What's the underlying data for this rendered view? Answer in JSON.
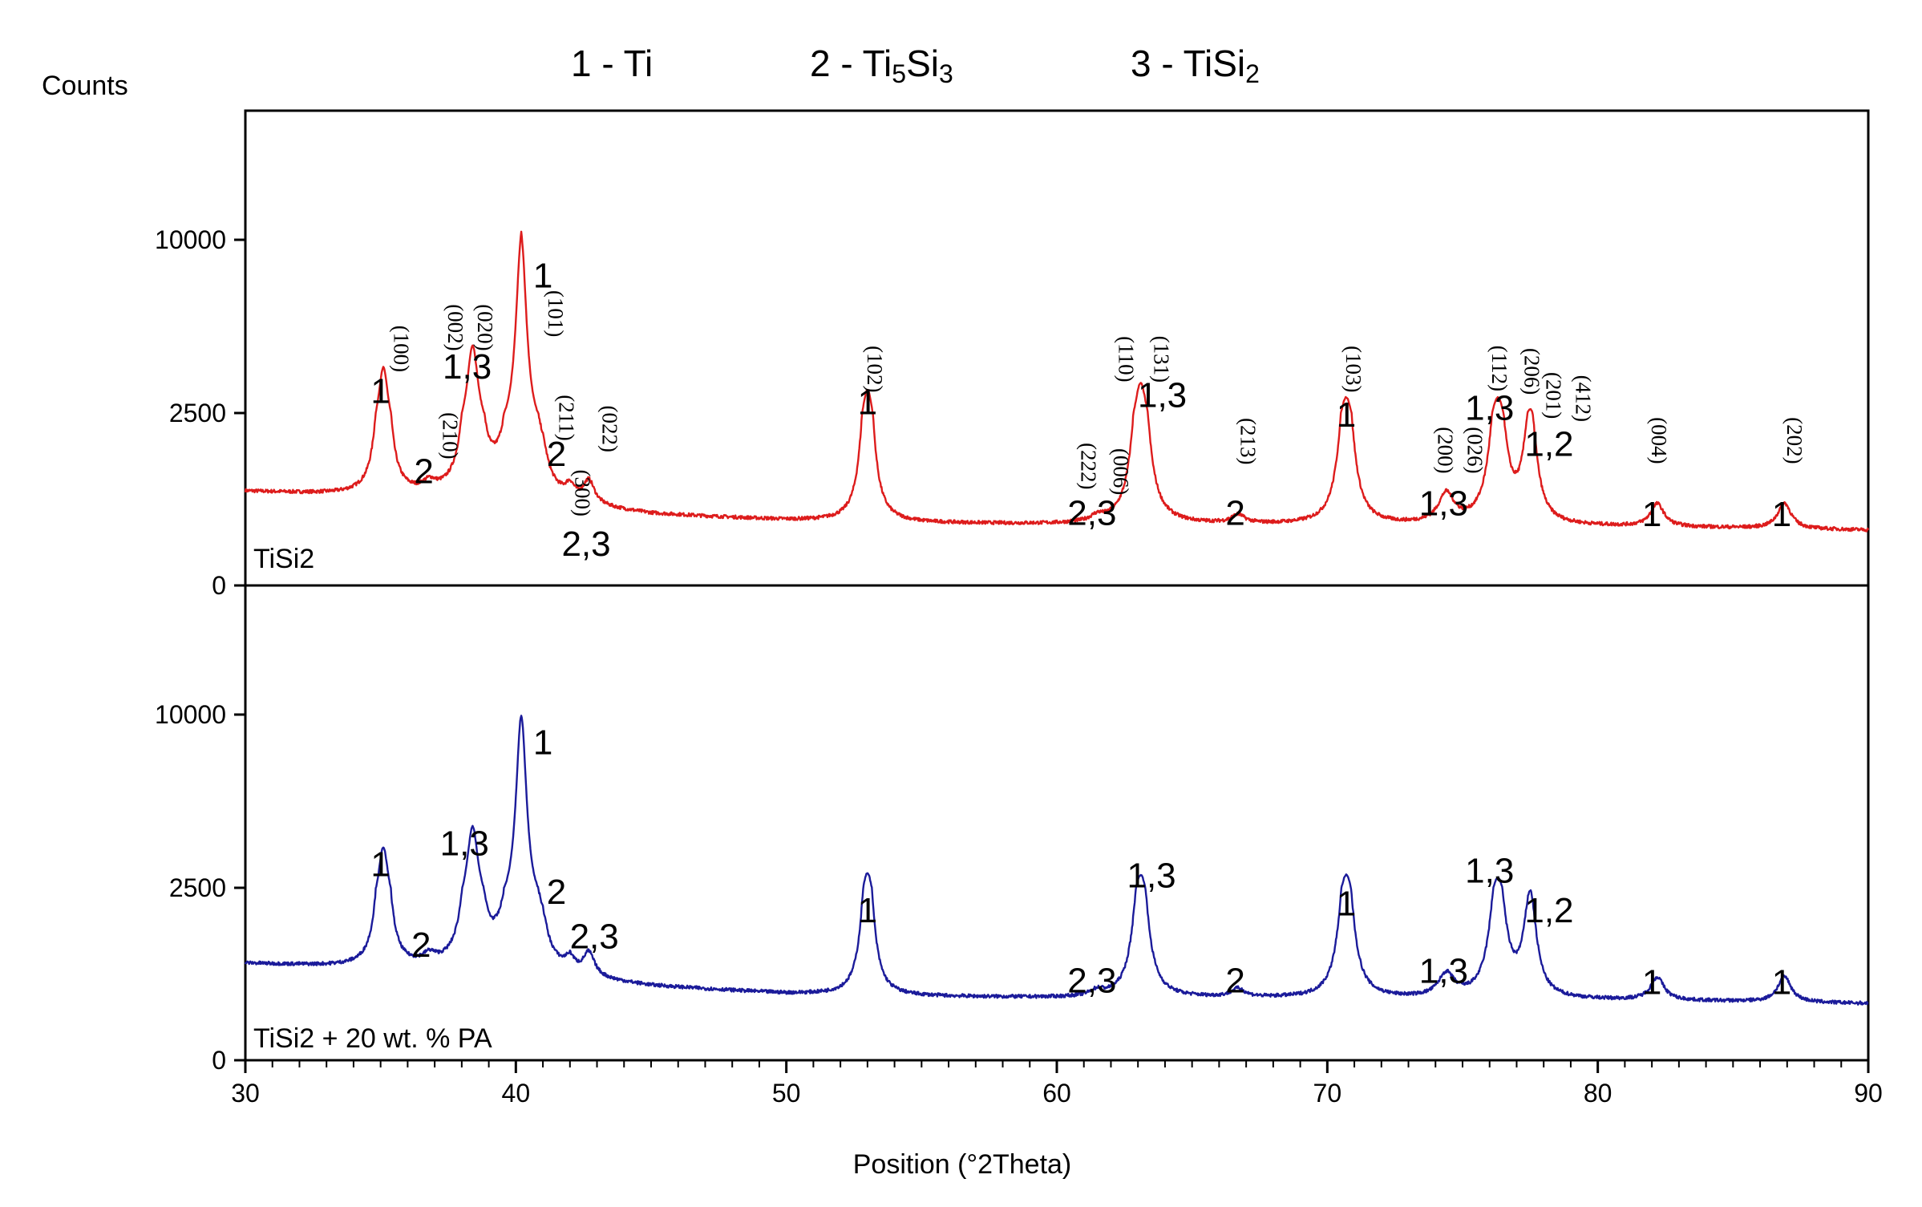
{
  "legend": {
    "phase1": {
      "num": "1 - ",
      "base": "Ti",
      "sub": "",
      "rest": ""
    },
    "phase2": {
      "num": "2 - ",
      "base": "Ti",
      "sub1": "5",
      "mid": "Si",
      "sub2": "3"
    },
    "phase3": {
      "num": "3 - ",
      "base": "TiSi",
      "sub": "2"
    }
  },
  "chart_data": [
    {
      "panel": "top",
      "type": "line",
      "title": "",
      "ylabel": "Counts",
      "xlabel": "",
      "sample_label": "TiSi2",
      "color": "#dd1c1c",
      "xlim": [
        30,
        90
      ],
      "y_tick_labels": [
        "0",
        "2500",
        "10000"
      ],
      "baseline": [
        [
          30,
          1360
        ],
        [
          34,
          1300
        ],
        [
          40,
          1200
        ],
        [
          45,
          1020
        ],
        [
          50,
          940
        ],
        [
          55,
          900
        ],
        [
          60,
          880
        ],
        [
          65,
          880
        ],
        [
          70,
          870
        ],
        [
          75,
          860
        ],
        [
          80,
          850
        ],
        [
          85,
          830
        ],
        [
          90,
          800
        ]
      ],
      "peaks": [
        {
          "x": 35.1,
          "height": 3150,
          "width": 0.22
        },
        {
          "x": 36.8,
          "height": 130,
          "width": 0.3
        },
        {
          "x": 38.4,
          "height": 4030,
          "width": 0.25
        },
        {
          "x": 40.2,
          "height": 8800,
          "width": 0.24
        },
        {
          "x": 41.0,
          "height": 250,
          "width": 0.2
        },
        {
          "x": 42.0,
          "height": 180,
          "width": 0.2
        },
        {
          "x": 42.7,
          "height": 330,
          "width": 0.25
        },
        {
          "x": 53.0,
          "height": 2580,
          "width": 0.25
        },
        {
          "x": 61.5,
          "height": 80,
          "width": 0.3
        },
        {
          "x": 63.1,
          "height": 2900,
          "width": 0.3
        },
        {
          "x": 66.7,
          "height": 120,
          "width": 0.3
        },
        {
          "x": 70.7,
          "height": 2300,
          "width": 0.3
        },
        {
          "x": 74.4,
          "height": 420,
          "width": 0.35
        },
        {
          "x": 76.3,
          "height": 2200,
          "width": 0.32
        },
        {
          "x": 77.5,
          "height": 1650,
          "width": 0.28
        },
        {
          "x": 82.2,
          "height": 330,
          "width": 0.3
        },
        {
          "x": 86.9,
          "height": 370,
          "width": 0.3
        }
      ],
      "phase_labels": [
        {
          "text": "1",
          "x": 35.0,
          "y": 2930
        },
        {
          "text": "2",
          "x": 36.6,
          "y": 1480
        },
        {
          "text": "1,3",
          "x": 38.2,
          "y": 3990
        },
        {
          "text": "1",
          "x": 41.0,
          "y": 7930
        },
        {
          "text": "2",
          "x": 41.5,
          "y": 1730
        },
        {
          "text": "2,3",
          "x": 42.6,
          "y": 430
        },
        {
          "text": "1",
          "x": 53.0,
          "y": 2480
        },
        {
          "text": "2,3",
          "x": 61.3,
          "y": 880
        },
        {
          "text": "1,3",
          "x": 63.9,
          "y": 2760
        },
        {
          "text": "2",
          "x": 66.6,
          "y": 880
        },
        {
          "text": "1",
          "x": 70.7,
          "y": 2300
        },
        {
          "text": "1,3",
          "x": 74.3,
          "y": 1020
        },
        {
          "text": "1,3",
          "x": 76.0,
          "y": 2400
        },
        {
          "text": "1,2",
          "x": 78.2,
          "y": 1880
        },
        {
          "text": "1",
          "x": 82.0,
          "y": 860
        },
        {
          "text": "1",
          "x": 86.8,
          "y": 860
        }
      ],
      "hkl_labels": [
        {
          "text": "(100)",
          "x": 35.5,
          "y": 5280
        },
        {
          "text": "(210)",
          "x": 37.3,
          "y": 2170
        },
        {
          "text": "(002)",
          "x": 37.5,
          "y": 6200
        },
        {
          "text": "(020)",
          "x": 38.6,
          "y": 6200
        },
        {
          "text": "(101)",
          "x": 41.2,
          "y": 6800
        },
        {
          "text": "(211)",
          "x": 41.6,
          "y": 2430
        },
        {
          "text": "(300)",
          "x": 42.2,
          "y": 1340
        },
        {
          "text": "(022)",
          "x": 43.2,
          "y": 2270
        },
        {
          "text": "(102)",
          "x": 53.0,
          "y": 4400
        },
        {
          "text": "(222)",
          "x": 60.9,
          "y": 1730
        },
        {
          "text": "(006)",
          "x": 62.1,
          "y": 1650
        },
        {
          "text": "(110)",
          "x": 62.3,
          "y": 4830
        },
        {
          "text": "(131)",
          "x": 63.6,
          "y": 4830
        },
        {
          "text": "(213)",
          "x": 66.8,
          "y": 2090
        },
        {
          "text": "(103)",
          "x": 70.7,
          "y": 4400
        },
        {
          "text": "(200)",
          "x": 74.1,
          "y": 1960
        },
        {
          "text": "(026)",
          "x": 75.2,
          "y": 1960
        },
        {
          "text": "(112)",
          "x": 76.1,
          "y": 4430
        },
        {
          "text": "(206)",
          "x": 77.3,
          "y": 4300
        },
        {
          "text": "(201)",
          "x": 78.1,
          "y": 3260
        },
        {
          "text": "(412)",
          "x": 79.2,
          "y": 3130
        },
        {
          "text": "(004)",
          "x": 82.0,
          "y": 2100
        },
        {
          "text": "(202)",
          "x": 87.0,
          "y": 2100
        }
      ]
    },
    {
      "panel": "bottom",
      "type": "line",
      "title": "",
      "ylabel": "",
      "xlabel": "Position (°2Theta)",
      "sample_label": "TiSi2 + 20 wt. % PA",
      "color": "#1b1b9a",
      "xlim": [
        30,
        90
      ],
      "x_tick_labels": [
        "30",
        "40",
        "50",
        "60",
        "70",
        "80",
        "90"
      ],
      "y_tick_labels": [
        "0",
        "2500",
        "10000"
      ],
      "baseline": [
        [
          30,
          1400
        ],
        [
          34,
          1340
        ],
        [
          40,
          1240
        ],
        [
          45,
          1060
        ],
        [
          50,
          960
        ],
        [
          55,
          920
        ],
        [
          60,
          900
        ],
        [
          65,
          900
        ],
        [
          70,
          890
        ],
        [
          75,
          880
        ],
        [
          80,
          870
        ],
        [
          85,
          850
        ],
        [
          90,
          820
        ]
      ],
      "peaks": [
        {
          "x": 35.1,
          "height": 2900,
          "width": 0.22
        },
        {
          "x": 36.8,
          "height": 130,
          "width": 0.3
        },
        {
          "x": 38.4,
          "height": 3720,
          "width": 0.25
        },
        {
          "x": 40.2,
          "height": 8600,
          "width": 0.24
        },
        {
          "x": 41.0,
          "height": 250,
          "width": 0.2
        },
        {
          "x": 42.0,
          "height": 180,
          "width": 0.2
        },
        {
          "x": 42.7,
          "height": 330,
          "width": 0.25
        },
        {
          "x": 53.0,
          "height": 2200,
          "width": 0.25
        },
        {
          "x": 61.5,
          "height": 80,
          "width": 0.3
        },
        {
          "x": 63.1,
          "height": 2150,
          "width": 0.3
        },
        {
          "x": 66.7,
          "height": 120,
          "width": 0.3
        },
        {
          "x": 70.7,
          "height": 2150,
          "width": 0.3
        },
        {
          "x": 74.4,
          "height": 330,
          "width": 0.35
        },
        {
          "x": 76.3,
          "height": 1950,
          "width": 0.32
        },
        {
          "x": 77.5,
          "height": 1450,
          "width": 0.28
        },
        {
          "x": 82.2,
          "height": 330,
          "width": 0.3
        },
        {
          "x": 86.9,
          "height": 370,
          "width": 0.3
        }
      ],
      "phase_labels": [
        {
          "text": "1",
          "x": 35.0,
          "y": 3000
        },
        {
          "text": "2",
          "x": 36.5,
          "y": 1500
        },
        {
          "text": "1,3",
          "x": 38.1,
          "y": 3900
        },
        {
          "text": "1",
          "x": 41.0,
          "y": 8280
        },
        {
          "text": "2",
          "x": 41.5,
          "y": 2270
        },
        {
          "text": "2,3",
          "x": 42.9,
          "y": 1620
        },
        {
          "text": "1",
          "x": 53.0,
          "y": 2000
        },
        {
          "text": "2,3",
          "x": 61.3,
          "y": 980
        },
        {
          "text": "1,3",
          "x": 63.5,
          "y": 2510
        },
        {
          "text": "2",
          "x": 66.6,
          "y": 980
        },
        {
          "text": "1",
          "x": 70.7,
          "y": 2100
        },
        {
          "text": "1,3",
          "x": 74.3,
          "y": 1120
        },
        {
          "text": "1,3",
          "x": 76.0,
          "y": 2730
        },
        {
          "text": "1,2",
          "x": 78.2,
          "y": 2000
        },
        {
          "text": "1",
          "x": 82.0,
          "y": 960
        },
        {
          "text": "1",
          "x": 86.8,
          "y": 960
        }
      ]
    }
  ]
}
